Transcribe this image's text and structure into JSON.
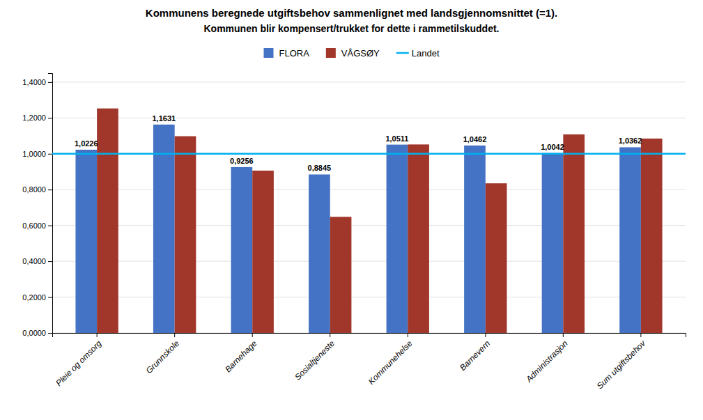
{
  "chart_data": {
    "type": "bar",
    "title": "Kommunens beregnede utgiftsbehov sammenlignet med landsgjennomsnittet (=1).",
    "subtitle": "Kommunen blir kompensert/trukket for dette i rammetilskuddet.",
    "categories": [
      "Pleie og omsorg",
      "Grunnskole",
      "Barnehage",
      "Sosialtjeneste",
      "Kommunehelse",
      "Barnevern",
      "Administrasjon",
      "Sum utgiftsbehov"
    ],
    "series": [
      {
        "name": "FLORA",
        "color": "#4472C4",
        "values": [
          1.0226,
          1.1631,
          0.9256,
          0.8845,
          1.0511,
          1.0462,
          1.0042,
          1.0362
        ],
        "data_labels": true,
        "value_labels": [
          "1,0226",
          "1,1631",
          "0,9256",
          "0,8845",
          "1,0511",
          "1,0462",
          "1,0042",
          "1,0362"
        ]
      },
      {
        "name": "VÅGSØY",
        "color": "#A0372A",
        "values": [
          1.253,
          1.098,
          0.906,
          0.648,
          1.052,
          0.835,
          1.108,
          1.085
        ]
      },
      {
        "name": "Landet",
        "type": "hline",
        "color": "#00B0F0",
        "value": 1.0
      }
    ],
    "ylim": [
      0.0,
      1.45
    ],
    "yticks": [
      {
        "value": 0.0,
        "label": "0,0000"
      },
      {
        "value": 0.2,
        "label": "0,2000"
      },
      {
        "value": 0.4,
        "label": "0,4000"
      },
      {
        "value": 0.6,
        "label": "0,6000"
      },
      {
        "value": 0.8,
        "label": "0,8000"
      },
      {
        "value": 1.0,
        "label": "1,0000"
      },
      {
        "value": 1.2,
        "label": "1,2000"
      },
      {
        "value": 1.4,
        "label": "1,4000"
      }
    ],
    "grid": true,
    "legend": "top"
  }
}
